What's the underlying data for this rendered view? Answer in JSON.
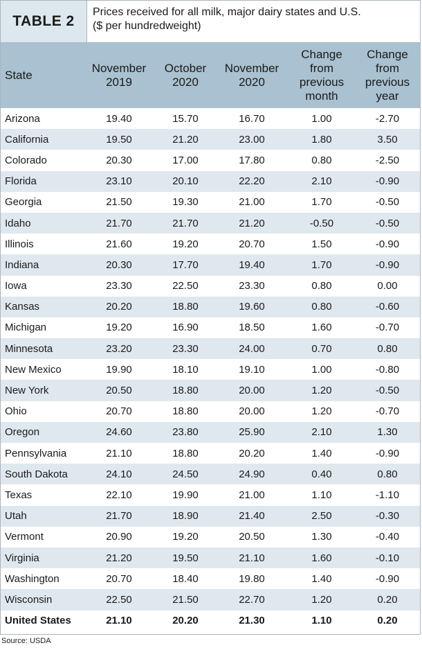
{
  "table_label": "TABLE 2",
  "caption_line1": "Prices received for all milk, major dairy states and U.S.",
  "caption_line2": "($ per hundredweight)",
  "headers": {
    "state": "State",
    "c1": [
      "November",
      "2019"
    ],
    "c2": [
      "October",
      "2020"
    ],
    "c3": [
      "November",
      "2020"
    ],
    "c4": [
      "Change",
      "from",
      "previous",
      "month"
    ],
    "c5": [
      "Change",
      "from",
      "previous",
      "year"
    ]
  },
  "rows": [
    [
      "Arizona",
      "19.40",
      "15.70",
      "16.70",
      "1.00",
      "-2.70"
    ],
    [
      "California",
      "19.50",
      "21.20",
      "23.00",
      "1.80",
      "3.50"
    ],
    [
      "Colorado",
      "20.30",
      "17.00",
      "17.80",
      "0.80",
      "-2.50"
    ],
    [
      "Florida",
      "23.10",
      "20.10",
      "22.20",
      "2.10",
      "-0.90"
    ],
    [
      "Georgia",
      "21.50",
      "19.30",
      "21.00",
      "1.70",
      "-0.50"
    ],
    [
      "Idaho",
      "21.70",
      "21.70",
      "21.20",
      "-0.50",
      "-0.50"
    ],
    [
      "Illinois",
      "21.60",
      "19.20",
      "20.70",
      "1.50",
      "-0.90"
    ],
    [
      "Indiana",
      "20.30",
      "17.70",
      "19.40",
      "1.70",
      "-0.90"
    ],
    [
      "Iowa",
      "23.30",
      "22.50",
      "23.30",
      "0.80",
      "0.00"
    ],
    [
      "Kansas",
      "20.20",
      "18.80",
      "19.60",
      "0.80",
      "-0.60"
    ],
    [
      "Michigan",
      "19.20",
      "16.90",
      "18.50",
      "1.60",
      "-0.70"
    ],
    [
      "Minnesota",
      "23.20",
      "23.30",
      "24.00",
      "0.70",
      "0.80"
    ],
    [
      "New Mexico",
      "19.90",
      "18.10",
      "19.10",
      "1.00",
      "-0.80"
    ],
    [
      "New York",
      "20.50",
      "18.80",
      "20.00",
      "1.20",
      "-0.50"
    ],
    [
      "Ohio",
      "20.70",
      "18.80",
      "20.00",
      "1.20",
      "-0.70"
    ],
    [
      "Oregon",
      "24.60",
      "23.80",
      "25.90",
      "2.10",
      "1.30"
    ],
    [
      "Pennsylvania",
      "21.10",
      "18.80",
      "20.20",
      "1.40",
      "-0.90"
    ],
    [
      "South Dakota",
      "24.10",
      "24.50",
      "24.90",
      "0.40",
      "0.80"
    ],
    [
      "Texas",
      "22.10",
      "19.90",
      "21.00",
      "1.10",
      "-1.10"
    ],
    [
      "Utah",
      "21.70",
      "18.90",
      "21.40",
      "2.50",
      "-0.30"
    ],
    [
      "Vermont",
      "20.90",
      "19.20",
      "20.50",
      "1.30",
      "-0.40"
    ],
    [
      "Virginia",
      "21.20",
      "19.50",
      "21.10",
      "1.60",
      "-0.10"
    ],
    [
      "Washington",
      "20.70",
      "18.40",
      "19.80",
      "1.40",
      "-0.90"
    ],
    [
      "Wisconsin",
      "22.50",
      "21.50",
      "22.70",
      "1.20",
      "0.20"
    ]
  ],
  "total": [
    "United States",
    "21.10",
    "20.20",
    "21.30",
    "1.10",
    "0.20"
  ],
  "source": "Source: USDA",
  "colors": {
    "header_bg": "#a9c1d0",
    "stripe_bg": "#dfe8ef",
    "label_bg": "#dde8ee"
  }
}
